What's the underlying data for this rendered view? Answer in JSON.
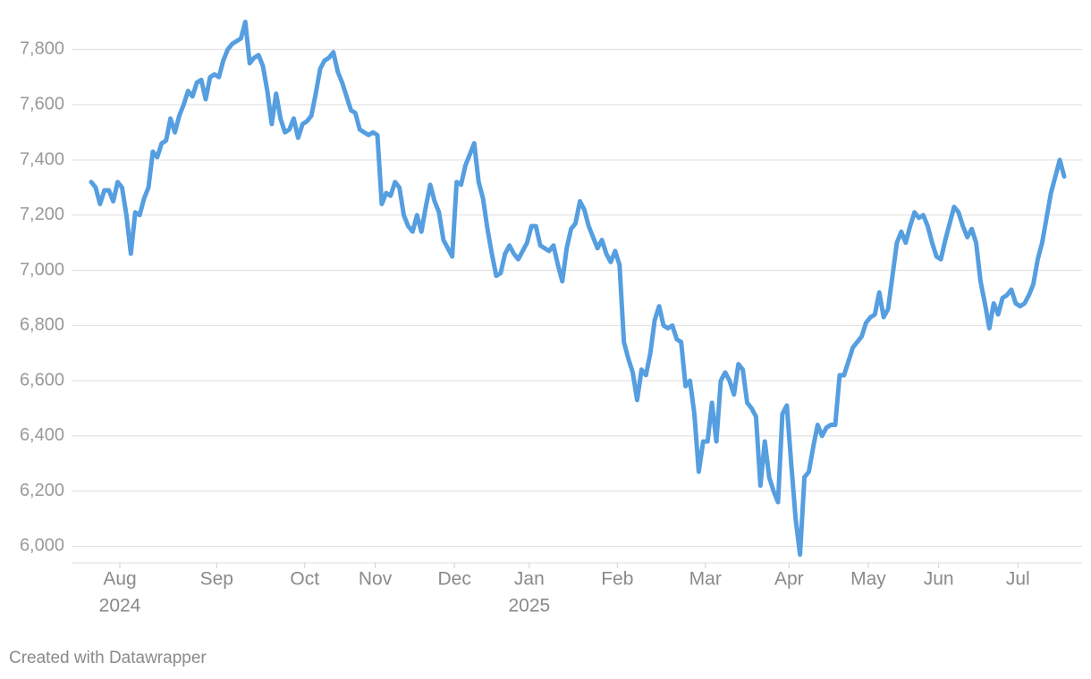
{
  "chart_data": {
    "type": "line",
    "footer": "Created with Datawrapper",
    "x": [
      "2024-07",
      "2024-07",
      "2024-07",
      "2024-07",
      "2024-07",
      "2024-07",
      "2024-07",
      "2024-08",
      "2024-08",
      "2024-08",
      "2024-08",
      "2024-08",
      "2024-08",
      "2024-08",
      "2024-08",
      "2024-08",
      "2024-08",
      "2024-08",
      "2024-08",
      "2024-08",
      "2024-08",
      "2024-08",
      "2024-08",
      "2024-08",
      "2024-08",
      "2024-08",
      "2024-08",
      "2024-08",
      "2024-08",
      "2024-09",
      "2024-09",
      "2024-09",
      "2024-09",
      "2024-09",
      "2024-09",
      "2024-09",
      "2024-09",
      "2024-09",
      "2024-09",
      "2024-09",
      "2024-09",
      "2024-09",
      "2024-09",
      "2024-09",
      "2024-09",
      "2024-09",
      "2024-09",
      "2024-09",
      "2024-09",
      "2024-10",
      "2024-10",
      "2024-10",
      "2024-10",
      "2024-10",
      "2024-10",
      "2024-10",
      "2024-10",
      "2024-10",
      "2024-10",
      "2024-10",
      "2024-10",
      "2024-10",
      "2024-10",
      "2024-10",
      "2024-10",
      "2024-11",
      "2024-11",
      "2024-11",
      "2024-11",
      "2024-11",
      "2024-11",
      "2024-11",
      "2024-11",
      "2024-11",
      "2024-11",
      "2024-11",
      "2024-11",
      "2024-11",
      "2024-11",
      "2024-11",
      "2024-11",
      "2024-11",
      "2024-11",
      "2024-12",
      "2024-12",
      "2024-12",
      "2024-12",
      "2024-12",
      "2024-12",
      "2024-12",
      "2024-12",
      "2024-12",
      "2024-12",
      "2024-12",
      "2024-12",
      "2024-12",
      "2024-12",
      "2024-12",
      "2024-12",
      "2024-12",
      "2025-01",
      "2025-01",
      "2025-01",
      "2025-01",
      "2025-01",
      "2025-01",
      "2025-01",
      "2025-01",
      "2025-01",
      "2025-01",
      "2025-01",
      "2025-01",
      "2025-01",
      "2025-01",
      "2025-01",
      "2025-01",
      "2025-01",
      "2025-01",
      "2025-01",
      "2025-01",
      "2025-02",
      "2025-02",
      "2025-02",
      "2025-02",
      "2025-02",
      "2025-02",
      "2025-02",
      "2025-02",
      "2025-02",
      "2025-02",
      "2025-02",
      "2025-02",
      "2025-02",
      "2025-02",
      "2025-02",
      "2025-02",
      "2025-02",
      "2025-02",
      "2025-02",
      "2025-02",
      "2025-03",
      "2025-03",
      "2025-03",
      "2025-03",
      "2025-03",
      "2025-03",
      "2025-03",
      "2025-03",
      "2025-03",
      "2025-03",
      "2025-03",
      "2025-03",
      "2025-03",
      "2025-03",
      "2025-03",
      "2025-03",
      "2025-03",
      "2025-03",
      "2025-03",
      "2025-04",
      "2025-04",
      "2025-04",
      "2025-04",
      "2025-04",
      "2025-04",
      "2025-04",
      "2025-04",
      "2025-04",
      "2025-04",
      "2025-04",
      "2025-04",
      "2025-04",
      "2025-04",
      "2025-04",
      "2025-04",
      "2025-04",
      "2025-04",
      "2025-05",
      "2025-05",
      "2025-05",
      "2025-05",
      "2025-05",
      "2025-05",
      "2025-05",
      "2025-05",
      "2025-05",
      "2025-05",
      "2025-05",
      "2025-05",
      "2025-05",
      "2025-05",
      "2025-05",
      "2025-05",
      "2025-06",
      "2025-06",
      "2025-06",
      "2025-06",
      "2025-06",
      "2025-06",
      "2025-06",
      "2025-06",
      "2025-06",
      "2025-06",
      "2025-06",
      "2025-06",
      "2025-06",
      "2025-06",
      "2025-06",
      "2025-06",
      "2025-06",
      "2025-06",
      "2025-07",
      "2025-07",
      "2025-07",
      "2025-07",
      "2025-07",
      "2025-07",
      "2025-07",
      "2025-07",
      "2025-07",
      "2025-07",
      "2025-07"
    ],
    "series": [
      {
        "color": "#559ee0",
        "values": [
          7320,
          7300,
          7240,
          7290,
          7290,
          7250,
          7320,
          7300,
          7200,
          7060,
          7210,
          7200,
          7260,
          7300,
          7430,
          7410,
          7460,
          7470,
          7550,
          7500,
          7560,
          7600,
          7650,
          7630,
          7680,
          7690,
          7620,
          7700,
          7710,
          7700,
          7760,
          7800,
          7820,
          7830,
          7840,
          7900,
          7750,
          7770,
          7780,
          7740,
          7650,
          7530,
          7640,
          7550,
          7500,
          7510,
          7550,
          7480,
          7530,
          7540,
          7560,
          7640,
          7730,
          7760,
          7770,
          7790,
          7720,
          7680,
          7630,
          7580,
          7570,
          7510,
          7500,
          7490,
          7500,
          7490,
          7240,
          7280,
          7270,
          7320,
          7300,
          7200,
          7160,
          7140,
          7200,
          7140,
          7230,
          7310,
          7250,
          7210,
          7110,
          7080,
          7050,
          7320,
          7310,
          7380,
          7420,
          7460,
          7320,
          7260,
          7150,
          7060,
          6980,
          6990,
          7060,
          7090,
          7060,
          7040,
          7070,
          7100,
          7160,
          7160,
          7090,
          7080,
          7070,
          7090,
          7020,
          6960,
          7080,
          7150,
          7170,
          7250,
          7220,
          7160,
          7120,
          7080,
          7110,
          7060,
          7030,
          7070,
          7020,
          6740,
          6680,
          6630,
          6530,
          6640,
          6620,
          6700,
          6820,
          6870,
          6800,
          6790,
          6800,
          6750,
          6740,
          6580,
          6600,
          6480,
          6270,
          6380,
          6380,
          6520,
          6380,
          6600,
          6630,
          6600,
          6550,
          6660,
          6640,
          6520,
          6500,
          6470,
          6220,
          6380,
          6250,
          6200,
          6160,
          6480,
          6510,
          6300,
          6100,
          5970,
          6250,
          6270,
          6360,
          6440,
          6400,
          6430,
          6440,
          6440,
          6620,
          6620,
          6670,
          6720,
          6740,
          6760,
          6810,
          6830,
          6840,
          6920,
          6830,
          6860,
          6980,
          7100,
          7140,
          7100,
          7160,
          7210,
          7190,
          7200,
          7160,
          7100,
          7050,
          7040,
          7110,
          7170,
          7230,
          7210,
          7160,
          7120,
          7150,
          7100,
          6960,
          6880,
          6790,
          6880,
          6840,
          6900,
          6910,
          6930,
          6880,
          6870,
          6880,
          6910,
          6950,
          7040,
          7100,
          7190,
          7280,
          7340,
          7400,
          7340
        ]
      }
    ],
    "xticks": [
      {
        "value": "2024-08",
        "label": "Aug",
        "sublabel": "2024"
      },
      {
        "value": "2024-09",
        "label": "Sep"
      },
      {
        "value": "2024-10",
        "label": "Oct"
      },
      {
        "value": "2024-11",
        "label": "Nov"
      },
      {
        "value": "2024-12",
        "label": "Dec"
      },
      {
        "value": "2025-01",
        "label": "Jan",
        "sublabel": "2025"
      },
      {
        "value": "2025-02",
        "label": "Feb"
      },
      {
        "value": "2025-03",
        "label": "Mar"
      },
      {
        "value": "2025-04",
        "label": "Apr"
      },
      {
        "value": "2025-05",
        "label": "May"
      },
      {
        "value": "2025-06",
        "label": "Jun"
      },
      {
        "value": "2025-07",
        "label": "Jul"
      }
    ],
    "ylim": [
      5940,
      7960
    ],
    "yticks": [
      {
        "value": 6000,
        "label": "6,000"
      },
      {
        "value": 6200,
        "label": "6,200"
      },
      {
        "value": 6400,
        "label": "6,400"
      },
      {
        "value": 6600,
        "label": "6,600"
      },
      {
        "value": 6800,
        "label": "6,800"
      },
      {
        "value": 7000,
        "label": "7,000"
      },
      {
        "value": 7200,
        "label": "7,200"
      },
      {
        "value": 7400,
        "label": "7,400"
      },
      {
        "value": 7600,
        "label": "7,600"
      },
      {
        "value": 7800,
        "label": "7,800"
      }
    ],
    "grid": true
  }
}
